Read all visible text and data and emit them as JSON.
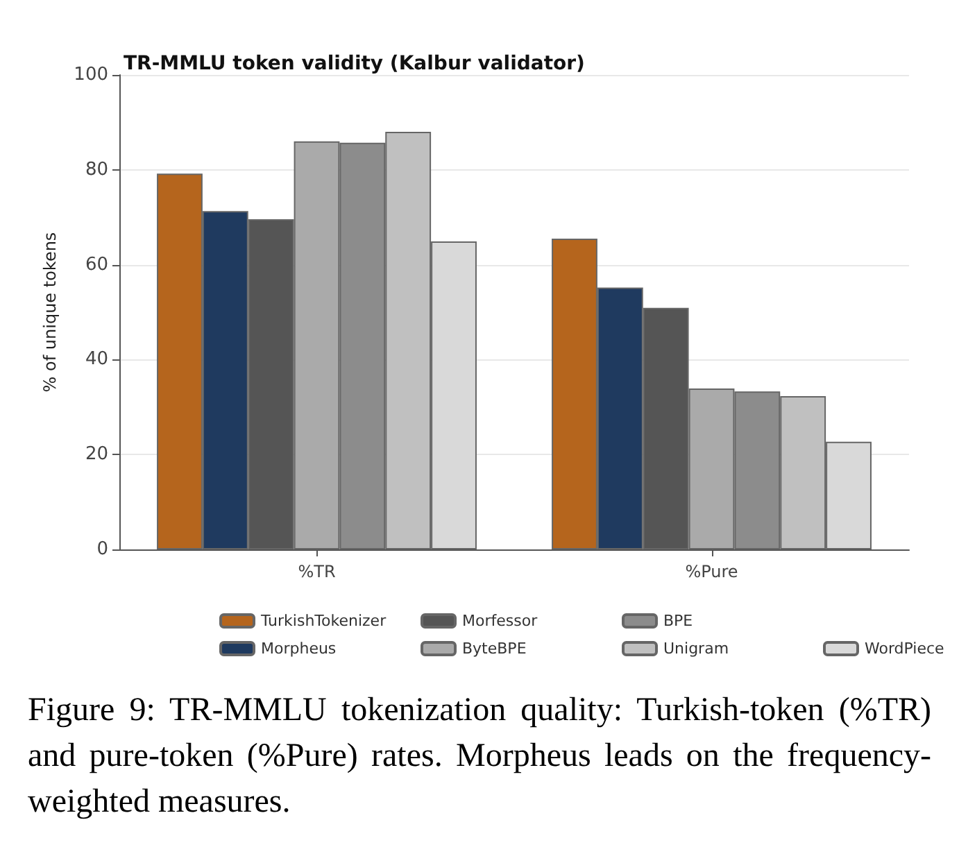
{
  "chart_data": {
    "type": "bar",
    "title": "TR-MMLU token validity (Kalbur validator)",
    "ylabel": "% of unique tokens",
    "categories": [
      "%TR",
      "%Pure"
    ],
    "series": [
      {
        "name": "TurkishTokenizer",
        "color": "#b5651d",
        "values": [
          79.2,
          65.5
        ]
      },
      {
        "name": "Morpheus",
        "color": "#1f3a5f",
        "values": [
          71.3,
          55.2
        ]
      },
      {
        "name": "Morfessor",
        "color": "#555555",
        "values": [
          69.6,
          50.9
        ]
      },
      {
        "name": "ByteBPE",
        "color": "#aaaaaa",
        "values": [
          86,
          33.9
        ]
      },
      {
        "name": "BPE",
        "color": "#8c8c8c",
        "values": [
          85.7,
          33.3
        ]
      },
      {
        "name": "Unigram",
        "color": "#c0c0c0",
        "values": [
          88,
          32.3
        ]
      },
      {
        "name": "WordPiece",
        "color": "#d9d9d9",
        "values": [
          64.9,
          22.7
        ]
      }
    ],
    "ylim": [
      0,
      100
    ],
    "yticks": [
      0,
      20,
      40,
      60,
      80,
      100
    ],
    "grid": "y",
    "legend": "bottom",
    "annotations": [
      "Figure 9: TR-MMLU tokenization quality: Turkish-token (%TR) and pure-token (%Pure) rates. Morpheus leads on the frequency-weighted measures."
    ]
  }
}
